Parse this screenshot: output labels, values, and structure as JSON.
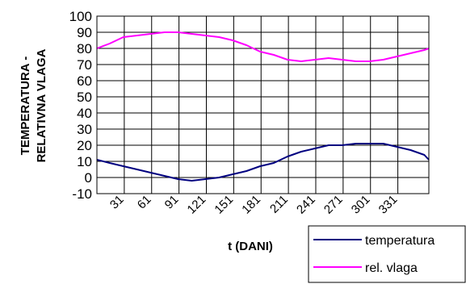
{
  "chart_data": {
    "type": "line",
    "xlabel": "t (DANI)",
    "ylabel_line1": "TEMPERATURA -",
    "ylabel_line2": "RELATIVNA VLAGA",
    "ylim": [
      -10,
      100
    ],
    "yticks": [
      -10,
      0,
      10,
      20,
      30,
      40,
      50,
      60,
      70,
      80,
      90,
      100
    ],
    "xlim": [
      1,
      365
    ],
    "xticks": [
      31,
      61,
      91,
      121,
      151,
      181,
      211,
      241,
      271,
      301,
      331
    ],
    "grid": true,
    "legend_position": "bottom-right",
    "series": [
      {
        "name": "temperatura",
        "color": "#000080",
        "x": [
          1,
          15,
          30,
          45,
          60,
          75,
          90,
          105,
          120,
          135,
          150,
          165,
          180,
          195,
          210,
          225,
          240,
          255,
          270,
          285,
          300,
          315,
          330,
          345,
          360,
          365
        ],
        "y": [
          11,
          9,
          7,
          5,
          3,
          1,
          -1,
          -2,
          -1,
          0,
          2,
          4,
          7,
          9,
          13,
          16,
          18,
          20,
          20,
          21,
          21,
          21,
          19,
          17,
          14,
          11
        ]
      },
      {
        "name": "rel. vlaga",
        "color": "#ff00ff",
        "x": [
          1,
          15,
          30,
          45,
          60,
          75,
          90,
          105,
          120,
          135,
          150,
          165,
          180,
          195,
          210,
          225,
          240,
          255,
          270,
          285,
          300,
          315,
          330,
          345,
          360,
          365
        ],
        "y": [
          80,
          83,
          87,
          88,
          89,
          90,
          90,
          89,
          88,
          87,
          85,
          82,
          78,
          76,
          73,
          72,
          73,
          74,
          73,
          72,
          72,
          73,
          75,
          77,
          79,
          80
        ]
      }
    ]
  }
}
